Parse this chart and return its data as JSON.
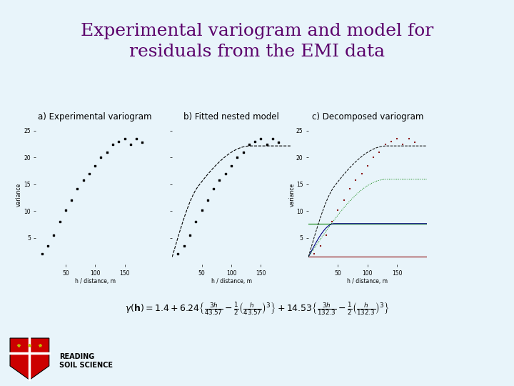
{
  "title_line1": "Experimental variogram and model for",
  "title_line2": "residuals from the EMI data",
  "title_color": "#5B006B",
  "title_fontsize": 18,
  "bg_color": "#E8F4FA",
  "stripe_red": "#CC0000",
  "stripe_black": "#000000",
  "subtitle_a": "a) Experimental variogram",
  "subtitle_b": "b) Fitted nested model",
  "subtitle_c": "c) Decomposed variogram",
  "subtitle_fontsize": 8.5,
  "nugget": 1.4,
  "sill1": 6.24,
  "range1": 43.57,
  "sill2": 14.53,
  "range2": 132.3,
  "scatter_x": [
    10,
    20,
    30,
    40,
    50,
    60,
    70,
    80,
    90,
    100,
    110,
    120,
    130,
    140,
    150,
    160,
    170,
    180
  ],
  "scatter_y": [
    2.0,
    3.5,
    5.5,
    8.0,
    10.2,
    12.0,
    14.2,
    15.8,
    17.0,
    18.5,
    20.0,
    21.0,
    22.5,
    23.0,
    23.5,
    22.5,
    23.5,
    22.8
  ],
  "xlim": [
    0,
    200
  ],
  "ylim": [
    0,
    26
  ],
  "xticks": [
    50,
    100,
    150
  ],
  "yticks": [
    5,
    10,
    15,
    20,
    25
  ],
  "xlabel": "h / distance, m",
  "ylabel": "variance",
  "dot_color_a": "#000000",
  "dot_color_b": "#000000",
  "dot_color_c": "#8B1A1A",
  "dot_size": 4,
  "model_line_color": "#000000",
  "comp1_color": "#000080",
  "comp2_color": "#008000",
  "nugget_color": "#8B0000",
  "total_model_color": "#000000",
  "formula": "$\\gamma(\\mathbf{h}) = 1.4 + 6.24\\left\\{\\frac{3h}{43.57} - \\frac{1}{2}\\left(\\frac{h}{43.57}\\right)^3\\right\\} + 14.53\\left\\{\\frac{3h}{132.3} - \\frac{1}{2}\\left(\\frac{h}{132.3}\\right)^3\\right\\}$",
  "formula_fontsize": 9,
  "logo_text": "READING\nSOIL SCIENCE",
  "logo_fontsize": 7
}
